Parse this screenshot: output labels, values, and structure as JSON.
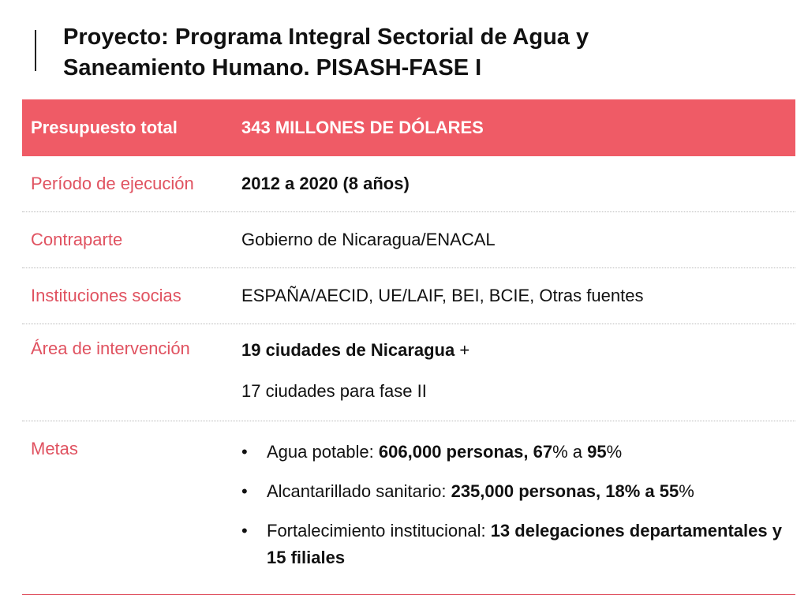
{
  "title": {
    "line1": "Proyecto: Programa Integral Sectorial de Agua y",
    "line2": "Saneamiento Humano. PISASH-FASE I"
  },
  "rows": {
    "presupuesto": {
      "label": "Presupuesto total",
      "value": "343 MILLONES DE DÓLARES"
    },
    "periodo": {
      "label": "Período de ejecución",
      "value": "2012 a 2020 (8 años)"
    },
    "contraparte": {
      "label": "Contraparte",
      "value": "Gobierno de Nicaragua/ENACAL"
    },
    "instituciones": {
      "label": "Instituciones socias",
      "value": "ESPAÑA/AECID,  UE/LAIF, BEI, BCIE, Otras fuentes"
    },
    "area": {
      "label": "Área de intervención",
      "line1_bold": "19 ciudades de Nicaragua",
      "line1_rest": " +",
      "line2": "17 ciudades para fase II"
    },
    "metas": {
      "label": "Metas",
      "bullet": "•",
      "items": [
        {
          "text": "Agua potable: ",
          "bold": "606,000 personas, 67",
          "rest": "% a ",
          "bold2": "95",
          "end": "%"
        },
        {
          "text": "Alcantarillado sanitario: ",
          "bold": "235,000 personas, 18% a 55",
          "rest": "%",
          "bold2": "",
          "end": ""
        },
        {
          "text": "Fortalecimiento institucional: ",
          "bold": "13 delegaciones departamentales y 15 filiales",
          "rest": "",
          "bold2": "",
          "end": ""
        }
      ]
    }
  },
  "colors": {
    "accent": "#ef5b66",
    "label": "#e05260"
  }
}
